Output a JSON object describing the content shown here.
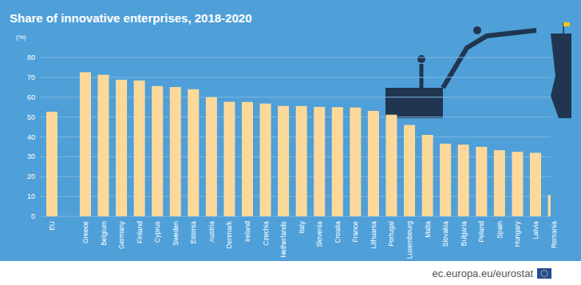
{
  "chart_data": {
    "type": "bar",
    "title": "Share of innovative enterprises, 2018-2020",
    "y_label": "(%)",
    "source": "ec.europa.eu/eurostat",
    "categories": [
      "EU",
      "Greece",
      "Belgium",
      "Germany",
      "Finland",
      "Cyprus",
      "Sweden",
      "Estonia",
      "Austria",
      "Denmark",
      "Ireland",
      "Czechia",
      "Netherlands",
      "Italy",
      "Slovenia",
      "Croatia",
      "France",
      "Lithuania",
      "Portugal",
      "Luxembourg",
      "Malta",
      "Slovakia",
      "Bulgaria",
      "Poland",
      "Spain",
      "Hungary",
      "Latvia",
      "Romania"
    ],
    "values": [
      52.7,
      72.6,
      71.3,
      68.8,
      68.4,
      65.6,
      65.1,
      64.0,
      60.0,
      57.7,
      57.6,
      56.8,
      55.6,
      55.6,
      55.1,
      55.0,
      54.8,
      53.1,
      51.2,
      46.0,
      41.0,
      36.6,
      36.1,
      35.0,
      33.3,
      32.5,
      32.0,
      10.7
    ],
    "color": "#fcd99b",
    "ylim": [
      0,
      80
    ],
    "yticks": [
      0,
      10,
      20,
      30,
      40,
      50,
      60,
      70,
      80
    ],
    "grid": true
  }
}
